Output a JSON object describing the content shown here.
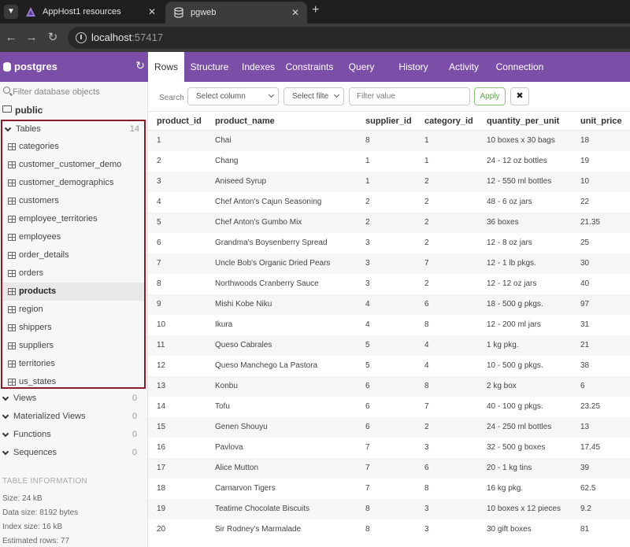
{
  "browser": {
    "tabs": [
      {
        "title": "AppHost1 resources",
        "icon": "aspire-triangle-icon"
      },
      {
        "title": "pgweb",
        "icon": "database-icon",
        "active": true
      }
    ],
    "url_host": "localhost",
    "url_port": ":57417"
  },
  "sidebar": {
    "db_name": "postgres",
    "filter_placeholder": "Filter database objects",
    "schema": "public",
    "tables_group": {
      "label": "Tables",
      "count": "14"
    },
    "tables": [
      "categories",
      "customer_customer_demo",
      "customer_demographics",
      "customers",
      "employee_territories",
      "employees",
      "order_details",
      "orders",
      "products",
      "region",
      "shippers",
      "suppliers",
      "territories",
      "us_states"
    ],
    "active_table": "products",
    "groups": [
      {
        "label": "Views",
        "count": "0"
      },
      {
        "label": "Materialized Views",
        "count": "0"
      },
      {
        "label": "Functions",
        "count": "0"
      },
      {
        "label": "Sequences",
        "count": "0"
      }
    ],
    "info": {
      "title": "TABLE INFORMATION",
      "lines": [
        "Size: 24 kB",
        "Data size: 8192 bytes",
        "Index size: 16 kB",
        "Estimated rows: 77"
      ]
    }
  },
  "main": {
    "tabs": [
      "Rows",
      "Structure",
      "Indexes",
      "Constraints",
      "Query",
      "History",
      "Activity",
      "Connection"
    ],
    "active_tab": "Rows",
    "toolbar": {
      "search_label": "Search",
      "column_select": "Select column",
      "filter_select": "Select filte",
      "value_placeholder": "Filter value",
      "apply_label": "Apply",
      "clear_label": "✖"
    },
    "columns": [
      "product_id",
      "product_name",
      "supplier_id",
      "category_id",
      "quantity_per_unit",
      "unit_price"
    ],
    "rows": [
      [
        "1",
        "Chai",
        "8",
        "1",
        "10 boxes x 30 bags",
        "18"
      ],
      [
        "2",
        "Chang",
        "1",
        "1",
        "24 - 12 oz bottles",
        "19"
      ],
      [
        "3",
        "Aniseed Syrup",
        "1",
        "2",
        "12 - 550 ml bottles",
        "10"
      ],
      [
        "4",
        "Chef Anton's Cajun Seasoning",
        "2",
        "2",
        "48 - 6 oz jars",
        "22"
      ],
      [
        "5",
        "Chef Anton's Gumbo Mix",
        "2",
        "2",
        "36 boxes",
        "21.35"
      ],
      [
        "6",
        "Grandma's Boysenberry Spread",
        "3",
        "2",
        "12 - 8 oz jars",
        "25"
      ],
      [
        "7",
        "Uncle Bob's Organic Dried Pears",
        "3",
        "7",
        "12 - 1 lb pkgs.",
        "30"
      ],
      [
        "8",
        "Northwoods Cranberry Sauce",
        "3",
        "2",
        "12 - 12 oz jars",
        "40"
      ],
      [
        "9",
        "Mishi Kobe Niku",
        "4",
        "6",
        "18 - 500 g pkgs.",
        "97"
      ],
      [
        "10",
        "Ikura",
        "4",
        "8",
        "12 - 200 ml jars",
        "31"
      ],
      [
        "11",
        "Queso Cabrales",
        "5",
        "4",
        "1 kg pkg.",
        "21"
      ],
      [
        "12",
        "Queso Manchego La Pastora",
        "5",
        "4",
        "10 - 500 g pkgs.",
        "38"
      ],
      [
        "13",
        "Konbu",
        "6",
        "8",
        "2 kg box",
        "6"
      ],
      [
        "14",
        "Tofu",
        "6",
        "7",
        "40 - 100 g pkgs.",
        "23.25"
      ],
      [
        "15",
        "Genen Shouyu",
        "6",
        "2",
        "24 - 250 ml bottles",
        "13"
      ],
      [
        "16",
        "Pavlova",
        "7",
        "3",
        "32 - 500 g boxes",
        "17.45"
      ],
      [
        "17",
        "Alice Mutton",
        "7",
        "6",
        "20 - 1 kg tins",
        "39"
      ],
      [
        "18",
        "Carnarvon Tigers",
        "7",
        "8",
        "16 kg pkg.",
        "62.5"
      ],
      [
        "19",
        "Teatime Chocolate Biscuits",
        "8",
        "3",
        "10 boxes x 12 pieces",
        "9.2"
      ],
      [
        "20",
        "Sir Rodney's Marmalade",
        "8",
        "3",
        "30 gift boxes",
        "81"
      ]
    ]
  },
  "colors": {
    "brand": "#7b4fa8",
    "highlight_border": "#8b1a2b",
    "apply_green": "#5ba24a"
  }
}
